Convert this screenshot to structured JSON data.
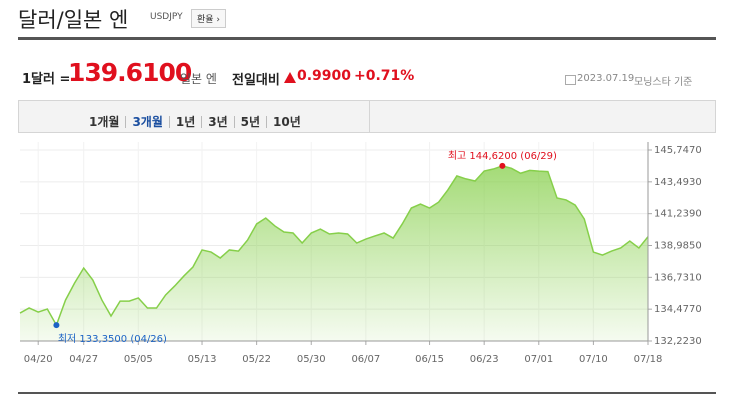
{
  "header": {
    "title": "달러/일본 엔",
    "code": "USDJPY",
    "button": "환율"
  },
  "quote": {
    "prefix": "1달러 =",
    "price": "139.6100",
    "unit": "일본 엔",
    "change_label": "전일대비",
    "change": "0.9900",
    "change_pct": "+0.71%",
    "date": "2023.07.19",
    "source": "모닝스타 기준"
  },
  "tabs": {
    "items": [
      "1개월",
      "3개월",
      "1년",
      "3년",
      "5년",
      "10년"
    ],
    "selected": 1
  },
  "chart_data": {
    "type": "line",
    "fill": true,
    "color": "#86cf4a",
    "grid": true,
    "categories": [
      null,
      null,
      "04/20",
      null,
      null,
      null,
      null,
      "04/27",
      null,
      null,
      null,
      null,
      null,
      "05/05",
      null,
      null,
      null,
      null,
      null,
      null,
      "05/13",
      null,
      null,
      null,
      null,
      null,
      "05/22",
      null,
      null,
      null,
      null,
      null,
      "05/30",
      null,
      null,
      null,
      null,
      null,
      "06/07",
      null,
      null,
      null,
      null,
      null,
      null,
      "06/15",
      null,
      null,
      null,
      null,
      null,
      "06/23",
      null,
      null,
      null,
      null,
      null,
      "07/01",
      null,
      null,
      null,
      null,
      null,
      "07/10",
      null,
      null,
      null,
      null,
      null,
      "07/18"
    ],
    "values": [
      134.2,
      134.56,
      134.27,
      134.49,
      133.35,
      135.12,
      136.33,
      137.39,
      136.54,
      135.12,
      133.99,
      135.05,
      135.05,
      135.27,
      134.56,
      134.56,
      135.48,
      136.12,
      136.82,
      137.46,
      138.67,
      138.52,
      138.1,
      138.67,
      138.59,
      139.37,
      140.51,
      140.93,
      140.37,
      139.94,
      139.87,
      139.16,
      139.87,
      140.15,
      139.8,
      139.87,
      139.8,
      139.16,
      139.44,
      139.66,
      139.87,
      139.51,
      140.51,
      141.64,
      141.92,
      141.64,
      142.06,
      142.91,
      143.91,
      143.7,
      143.55,
      144.26,
      144.4,
      144.62,
      144.45,
      144.1,
      144.3,
      144.25,
      144.22,
      142.35,
      142.21,
      141.85,
      140.86,
      138.52,
      138.31,
      138.59,
      138.81,
      139.3,
      138.81,
      139.61
    ],
    "ylim": [
      132.223,
      145.747
    ],
    "yticks": [
      {
        "value": 145.747,
        "label": "145,7470"
      },
      {
        "value": 143.493,
        "label": "143,4930"
      },
      {
        "value": 141.239,
        "label": "141,2390"
      },
      {
        "value": 138.985,
        "label": "138,9850"
      },
      {
        "value": 136.731,
        "label": "136,7310"
      },
      {
        "value": 134.477,
        "label": "134,4770"
      },
      {
        "value": 132.223,
        "label": "132,2230"
      }
    ],
    "annotations": [
      {
        "text": "최고 144,6200 (06/29)",
        "index": 53,
        "color": "#e0101e"
      },
      {
        "text": "최저 133,3500 (04/26)",
        "index": 4,
        "color": "#1b63c5"
      }
    ]
  }
}
